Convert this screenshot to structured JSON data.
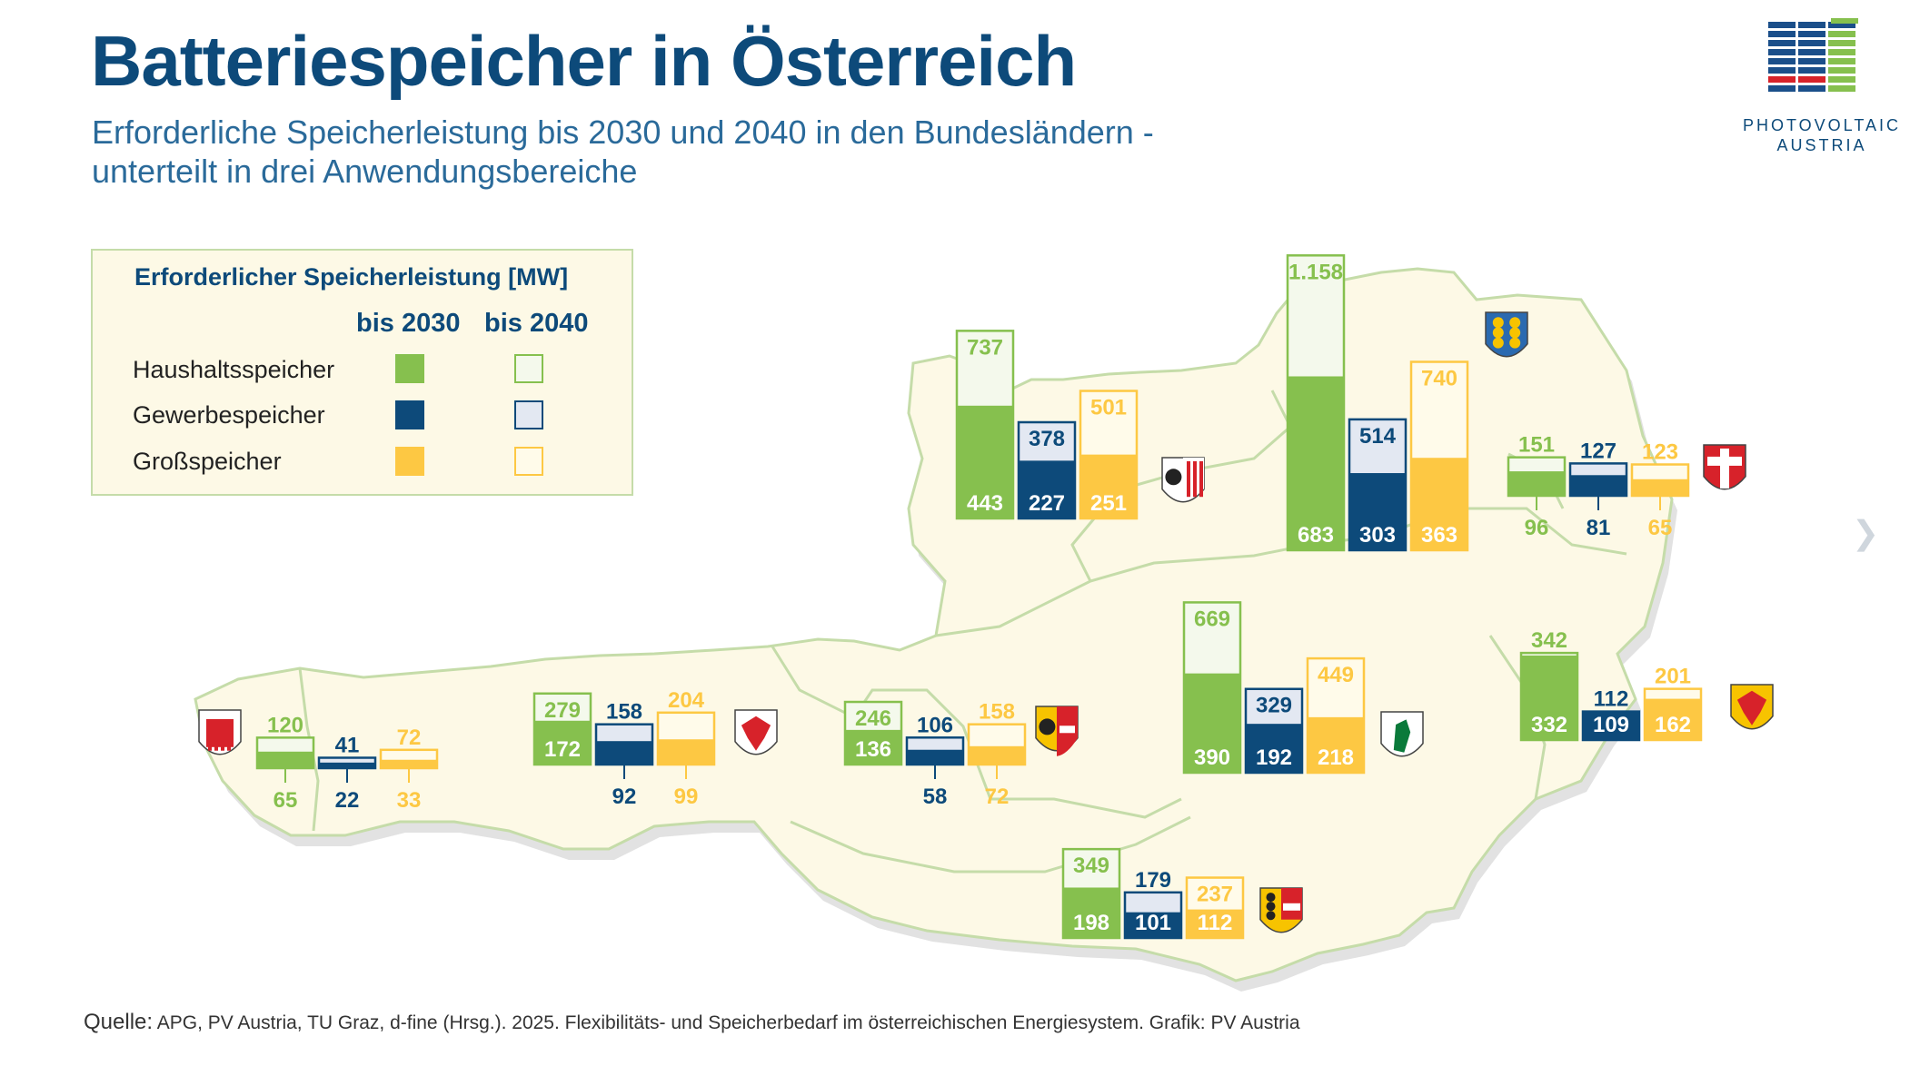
{
  "header": {
    "title": "Batteriespeicher in Österreich",
    "subtitle_line1": "Erforderliche Speicherleistung bis 2030 und 2040 in den Bundesländern -",
    "subtitle_line2": "unterteilt in drei Anwendungsbereiche"
  },
  "logo": {
    "line1": "PHOTOVOLTAIC",
    "line2": "AUSTRIA"
  },
  "legend": {
    "title": "Erforderlicher Speicherleistung [MW]",
    "col_2030": "bis 2030",
    "col_2040": "bis 2040",
    "rows": [
      "Haushaltsspeicher",
      "Gewerbespeicher",
      "Großspeicher"
    ]
  },
  "colors": {
    "haushalt": "#86c04e",
    "haushalt_light": "#f4f9ec",
    "gewerbe": "#0d4a7a",
    "gewerbe_light": "#e3e8f2",
    "gross": "#fdc843",
    "gross_light": "#fffbea",
    "map_fill": "#fdf9e6",
    "map_border": "#c5dca9",
    "map_shadow": "#e2e2e2"
  },
  "chart_data": {
    "type": "bar",
    "unit": "MW",
    "series": [
      "bis 2030",
      "bis 2040"
    ],
    "categories_segments": [
      "Haushaltsspeicher",
      "Gewerbespeicher",
      "Großspeicher"
    ],
    "states": [
      {
        "id": "vorarlberg",
        "coat": "vorarlberg-coat-icon",
        "haushalt": {
          "v2030": 65,
          "v2040": 120
        },
        "gewerbe": {
          "v2030": 22,
          "v2040": 41
        },
        "gross": {
          "v2030": 33,
          "v2040": 72
        }
      },
      {
        "id": "tirol",
        "coat": "tirol-coat-icon",
        "haushalt": {
          "v2030": 172,
          "v2040": 279
        },
        "gewerbe": {
          "v2030": 92,
          "v2040": 158
        },
        "gross": {
          "v2030": 99,
          "v2040": 204
        }
      },
      {
        "id": "salzburg",
        "coat": "salzburg-coat-icon",
        "haushalt": {
          "v2030": 136,
          "v2040": 246
        },
        "gewerbe": {
          "v2030": 58,
          "v2040": 106
        },
        "gross": {
          "v2030": 72,
          "v2040": 158
        }
      },
      {
        "id": "oberoesterreich",
        "coat": "oberoesterreich-coat-icon",
        "haushalt": {
          "v2030": 443,
          "v2040": 737
        },
        "gewerbe": {
          "v2030": 227,
          "v2040": 378
        },
        "gross": {
          "v2030": 251,
          "v2040": 501
        }
      },
      {
        "id": "niederoesterreich",
        "coat": "niederoesterreich-coat-icon",
        "haushalt": {
          "v2030": 683,
          "v2040": 1158,
          "label2040": "1.158"
        },
        "gewerbe": {
          "v2030": 303,
          "v2040": 514
        },
        "gross": {
          "v2030": 363,
          "v2040": 740
        }
      },
      {
        "id": "wien",
        "coat": "wien-coat-icon",
        "haushalt": {
          "v2030": 96,
          "v2040": 151
        },
        "gewerbe": {
          "v2030": 81,
          "v2040": 127
        },
        "gross": {
          "v2030": 65,
          "v2040": 123
        }
      },
      {
        "id": "steiermark",
        "coat": "steiermark-coat-icon",
        "haushalt": {
          "v2030": 390,
          "v2040": 669
        },
        "gewerbe": {
          "v2030": 192,
          "v2040": 329
        },
        "gross": {
          "v2030": 218,
          "v2040": 449
        }
      },
      {
        "id": "burgenland",
        "coat": "burgenland-coat-icon",
        "haushalt": {
          "v2030": 332,
          "v2040": 342
        },
        "gewerbe": {
          "v2030": 109,
          "v2040": 112
        },
        "gross": {
          "v2030": 162,
          "v2040": 201
        }
      },
      {
        "id": "kaernten",
        "coat": "kaernten-coat-icon",
        "haushalt": {
          "v2030": 198,
          "v2040": 349
        },
        "gewerbe": {
          "v2030": 101,
          "v2040": 179
        },
        "gross": {
          "v2030": 112,
          "v2040": 237
        }
      }
    ]
  },
  "source": {
    "label": "Quelle:",
    "text": " APG, PV Austria, TU Graz, d-fine (Hrsg.). 2025. Flexibilitäts- und Speicherbedarf im österreichischen Energiesystem. Grafik: PV Austria"
  }
}
